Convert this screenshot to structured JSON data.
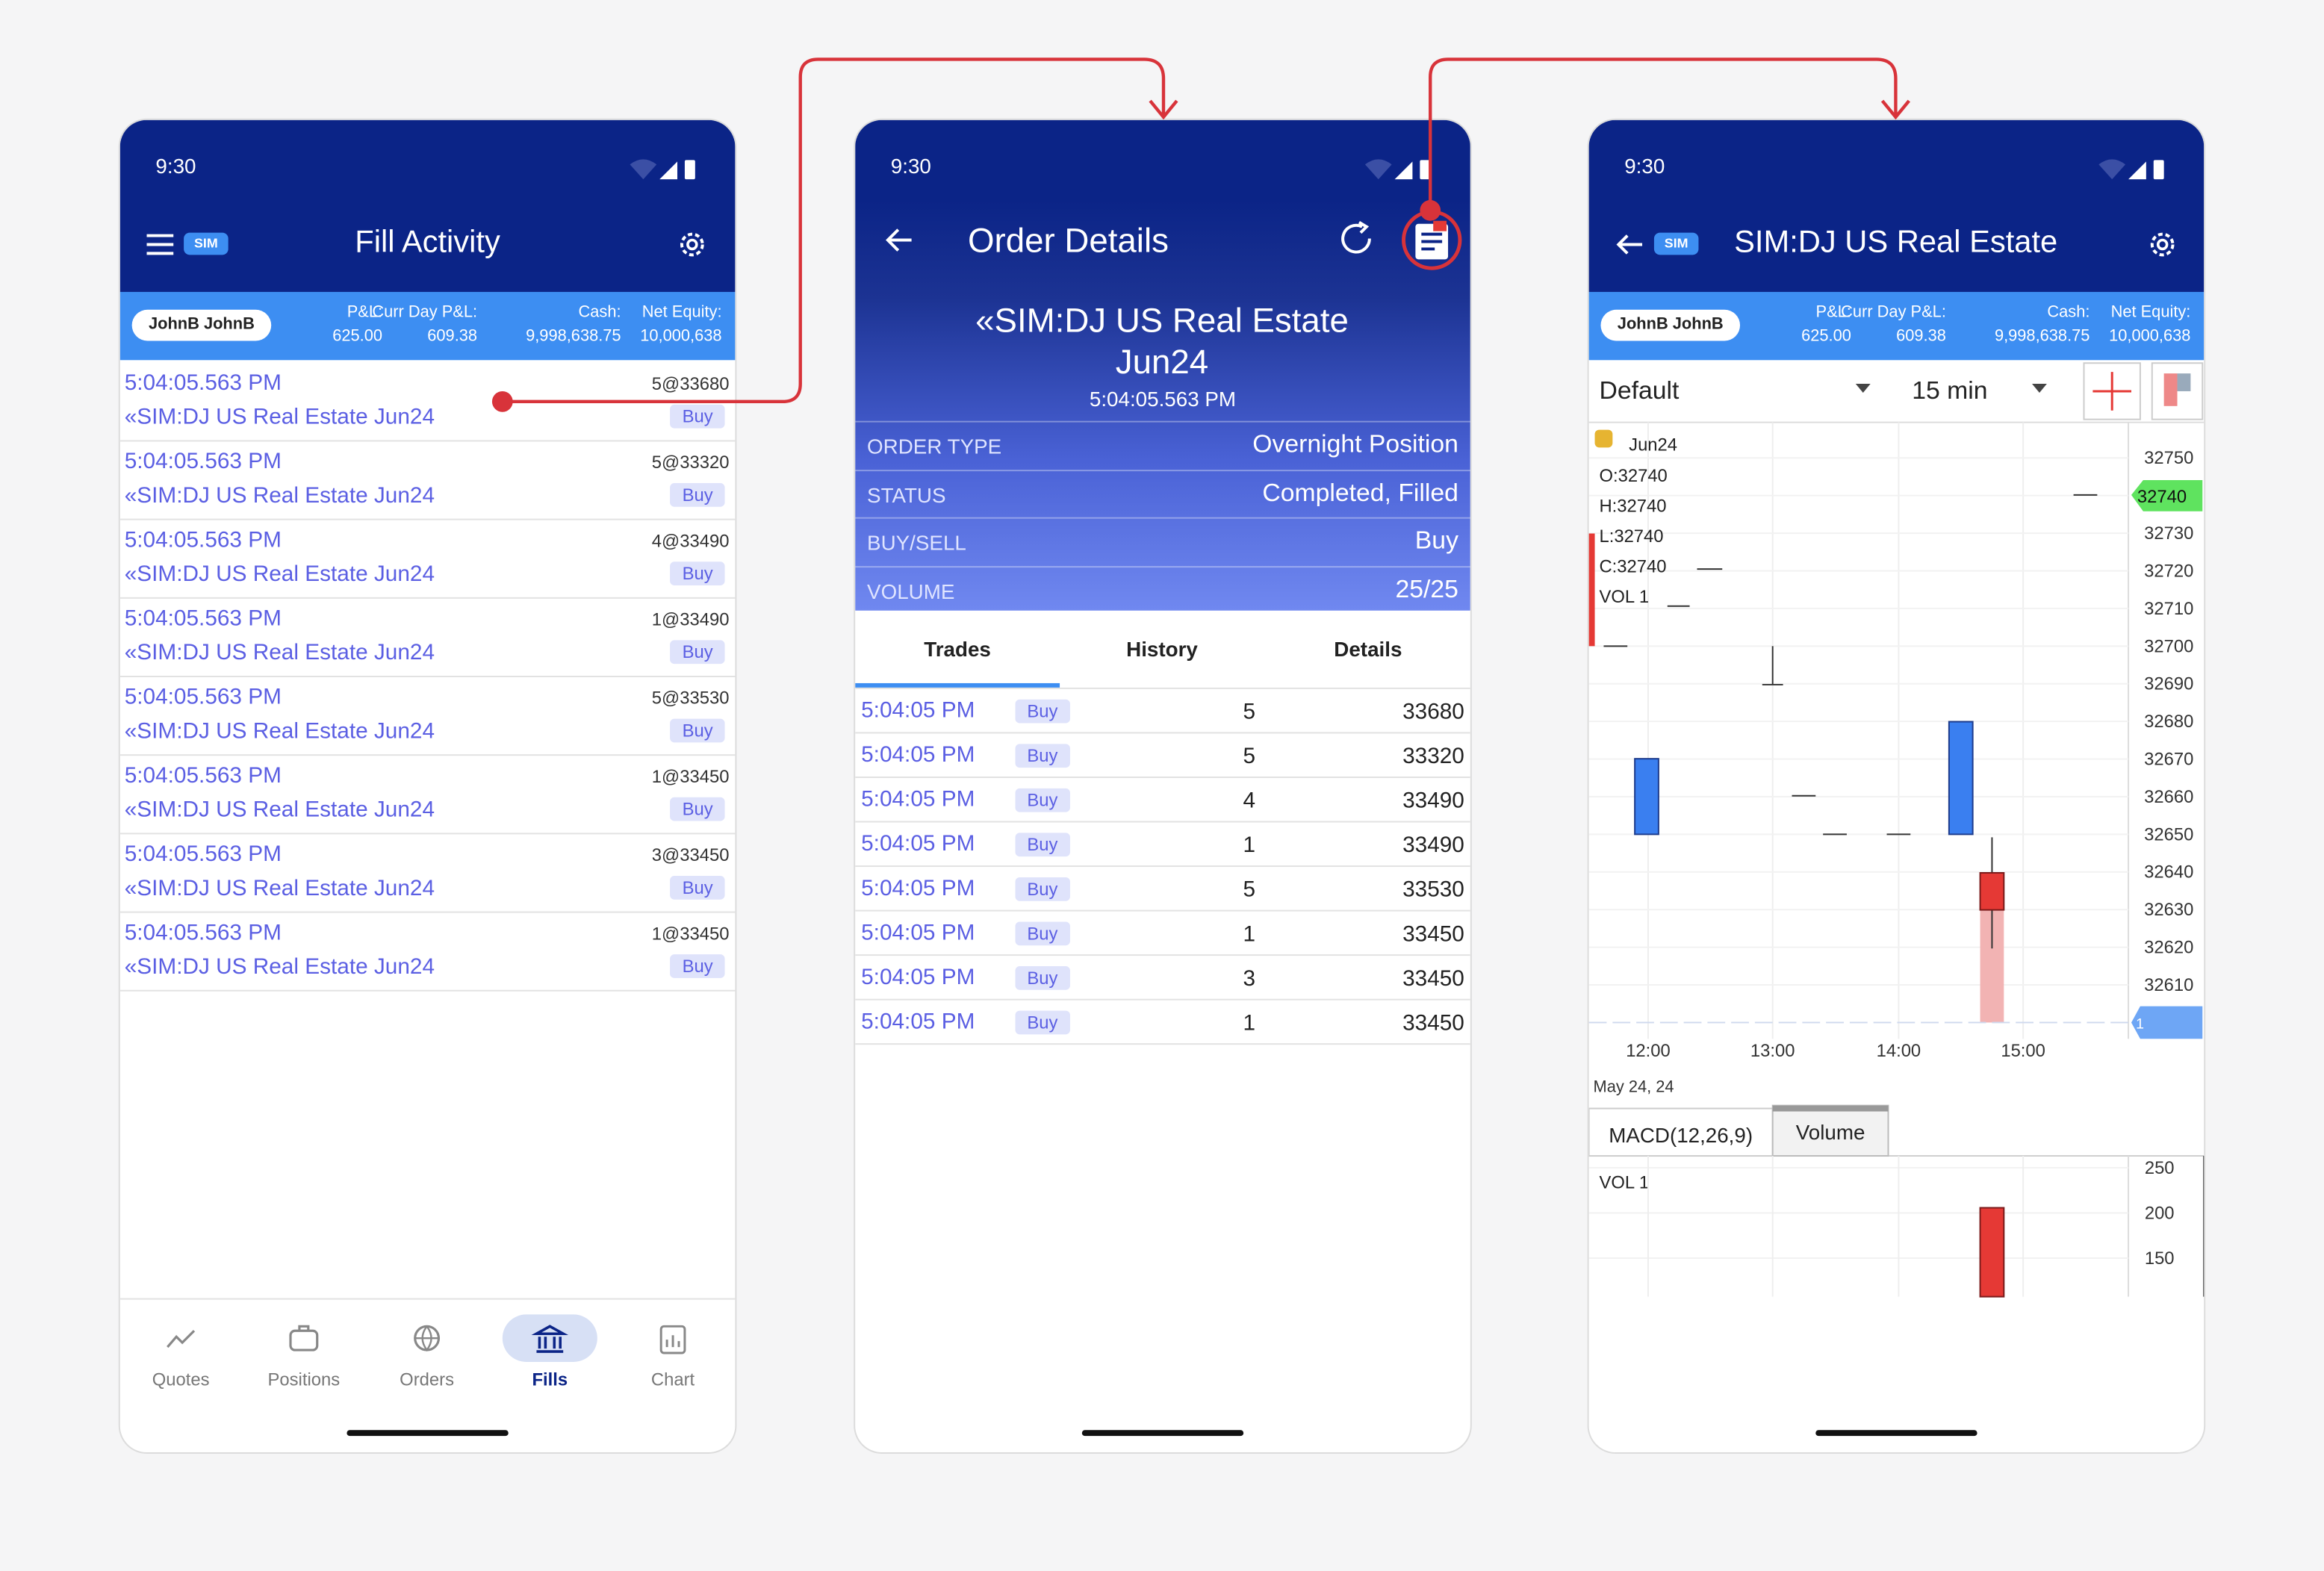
{
  "screens": [
    {
      "status_time": "9:30",
      "badge": "SIM",
      "title": "Fill Activity",
      "account": "JohnB JohnB",
      "summary": [
        {
          "label": "P&L:",
          "value": "625.00"
        },
        {
          "label": "Curr Day P&L:",
          "value": "609.38"
        },
        {
          "label": "Cash:",
          "value": "9,998,638.75"
        },
        {
          "label": "Net Equity:",
          "value": "10,000,638"
        }
      ],
      "fills": [
        {
          "time": "5:04:05.563 PM",
          "fill": "5@33680",
          "instrument": "«SIM:DJ US Real Estate Jun24",
          "side": "Buy"
        },
        {
          "time": "5:04:05.563 PM",
          "fill": "5@33320",
          "instrument": "«SIM:DJ US Real Estate Jun24",
          "side": "Buy"
        },
        {
          "time": "5:04:05.563 PM",
          "fill": "4@33490",
          "instrument": "«SIM:DJ US Real Estate Jun24",
          "side": "Buy"
        },
        {
          "time": "5:04:05.563 PM",
          "fill": "1@33490",
          "instrument": "«SIM:DJ US Real Estate Jun24",
          "side": "Buy"
        },
        {
          "time": "5:04:05.563 PM",
          "fill": "5@33530",
          "instrument": "«SIM:DJ US Real Estate Jun24",
          "side": "Buy"
        },
        {
          "time": "5:04:05.563 PM",
          "fill": "1@33450",
          "instrument": "«SIM:DJ US Real Estate Jun24",
          "side": "Buy"
        },
        {
          "time": "5:04:05.563 PM",
          "fill": "3@33450",
          "instrument": "«SIM:DJ US Real Estate Jun24",
          "side": "Buy"
        },
        {
          "time": "5:04:05.563 PM",
          "fill": "1@33450",
          "instrument": "«SIM:DJ US Real Estate Jun24",
          "side": "Buy"
        }
      ],
      "nav": [
        "Quotes",
        "Positions",
        "Orders",
        "Fills",
        "Chart"
      ],
      "active_nav": 3
    },
    {
      "status_time": "9:30",
      "title": "Order Details",
      "instrument": "«SIM:DJ US Real Estate Jun24",
      "time": "5:04:05.563 PM",
      "details": [
        {
          "label": "ORDER TYPE",
          "value": "Overnight Position"
        },
        {
          "label": "STATUS",
          "value": "Completed, Filled"
        },
        {
          "label": "BUY/SELL",
          "value": "Buy"
        },
        {
          "label": "VOLUME",
          "value": "25/25"
        }
      ],
      "tabs": [
        "Trades",
        "History",
        "Details"
      ],
      "trades": [
        {
          "time": "5:04:05 PM",
          "side": "Buy",
          "qty": 5,
          "price": 33680
        },
        {
          "time": "5:04:05 PM",
          "side": "Buy",
          "qty": 5,
          "price": 33320
        },
        {
          "time": "5:04:05 PM",
          "side": "Buy",
          "qty": 4,
          "price": 33490
        },
        {
          "time": "5:04:05 PM",
          "side": "Buy",
          "qty": 1,
          "price": 33490
        },
        {
          "time": "5:04:05 PM",
          "side": "Buy",
          "qty": 5,
          "price": 33530
        },
        {
          "time": "5:04:05 PM",
          "side": "Buy",
          "qty": 1,
          "price": 33450
        },
        {
          "time": "5:04:05 PM",
          "side": "Buy",
          "qty": 3,
          "price": 33450
        },
        {
          "time": "5:04:05 PM",
          "side": "Buy",
          "qty": 1,
          "price": 33450
        }
      ]
    },
    {
      "status_time": "9:30",
      "badge": "SIM",
      "title": "SIM:DJ US Real Estate",
      "account": "JohnB JohnB",
      "summary": [
        {
          "label": "P&L:",
          "value": "625.00"
        },
        {
          "label": "Curr Day P&L:",
          "value": "609.38"
        },
        {
          "label": "Cash:",
          "value": "9,998,638.75"
        },
        {
          "label": "Net Equity:",
          "value": "10,000,638"
        }
      ],
      "template": "Default",
      "interval": "15 min",
      "legend": "Jun24",
      "ohlc": [
        "O:32740",
        "H:32740",
        "L:32740",
        "C:32740",
        "VOL 1"
      ],
      "price_axis": [
        32750,
        32740,
        32730,
        32720,
        32710,
        32700,
        32690,
        32680,
        32670,
        32660,
        32650,
        32640,
        32630,
        32620,
        32610
      ],
      "last_price": "32740",
      "volume_marker": "1",
      "time_axis": [
        "12:00",
        "13:00",
        "14:00",
        "15:00"
      ],
      "date": "May 24, 24",
      "indicator_tabs": [
        "MACD(12,26,9)",
        "Volume"
      ],
      "volume_label": "VOL 1",
      "volume_axis": [
        250,
        200,
        150
      ]
    }
  ]
}
